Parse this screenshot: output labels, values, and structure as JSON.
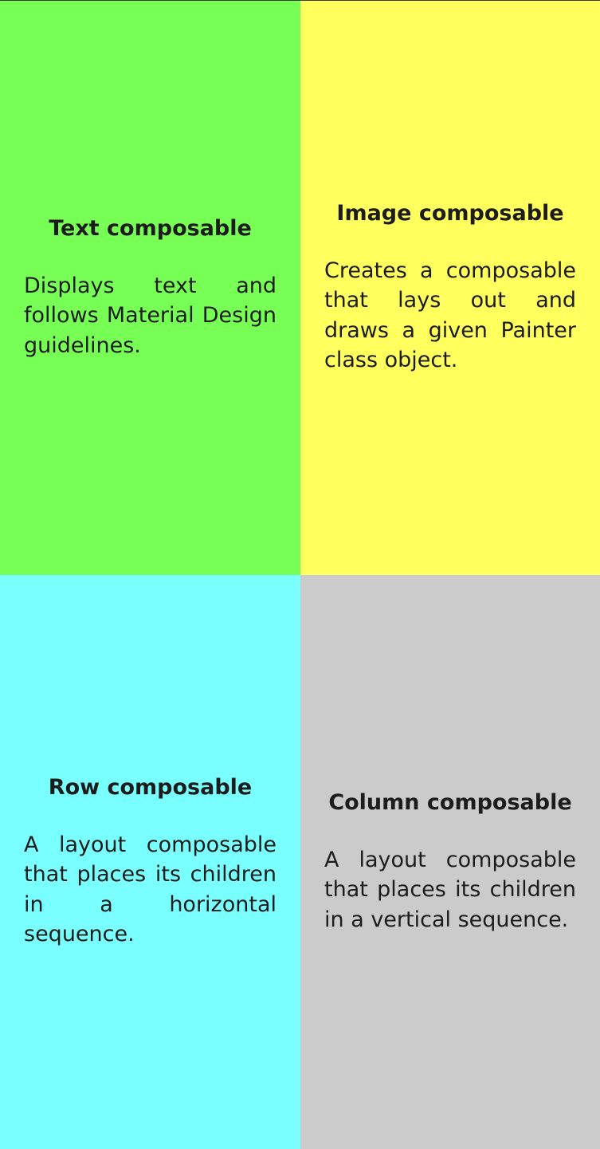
{
  "quadrants": [
    {
      "title": "Text composable",
      "description": "Displays text and follows Material Design guidelines.",
      "color": "#78FF56"
    },
    {
      "title": "Image composable",
      "description": "Creates a composable that lays out and draws a given Painter class object.",
      "color": "#FFFF5E"
    },
    {
      "title": "Row composable",
      "description": "A layout composable that places its children in a horizontal sequence.",
      "color": "#7AFFFF"
    },
    {
      "title": "Column composable",
      "description": "A layout composable that places its children in a vertical sequence.",
      "color": "#CCCBCB"
    }
  ]
}
